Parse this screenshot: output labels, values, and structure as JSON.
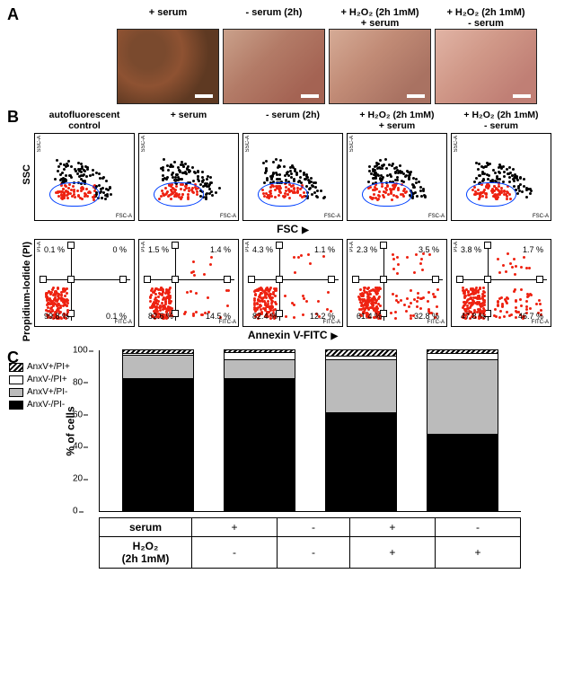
{
  "panelA": {
    "tag": "A",
    "conditions": [
      {
        "label": "+ serum"
      },
      {
        "label": "- serum (2h)"
      },
      {
        "label": "+ H₂O₂ (2h 1mM)\n+ serum"
      },
      {
        "label": "+ H₂O₂ (2h 1mM)\n- serum"
      }
    ]
  },
  "panelB": {
    "tag": "B",
    "y_upper": "SSC",
    "x_upper": "FSC",
    "y_lower": "Propidium-Iodide (PI)",
    "x_lower": "Annexin V-FITC",
    "mini_y": "SSC-A",
    "mini_x_fsc": "FSC-A",
    "mini_y_pi": "PI-A",
    "mini_x_fitc": "FITC-A",
    "gate_color": "#0040ff",
    "dot_color_red": "#ee2211",
    "dot_color_black": "#000000",
    "columns": [
      {
        "label": "autofluorescent\ncontrol",
        "quad": {
          "tl": "0.1 %",
          "tr": "0 %",
          "bl": "99.8 %",
          "br": "0.1 %"
        },
        "br_population": 0.1
      },
      {
        "label": "+ serum",
        "quad": {
          "tl": "1.5 %",
          "tr": "1.4 %",
          "bl": "82.6 %",
          "br": "14.5 %"
        },
        "br_population": 14.5
      },
      {
        "label": "- serum (2h)",
        "quad": {
          "tl": "4.3 %",
          "tr": "1.1 %",
          "bl": "82.4 %",
          "br": "12.2 %"
        },
        "br_population": 12.2
      },
      {
        "label": "+ H₂O₂ (2h 1mM)\n+ serum",
        "quad": {
          "tl": "2.3 %",
          "tr": "3.5 %",
          "bl": "61.4 %",
          "br": "32.8 %"
        },
        "br_population": 32.8
      },
      {
        "label": "+ H₂O₂ (2h 1mM)\n- serum",
        "quad": {
          "tl": "3.8 %",
          "tr": "1.7 %",
          "bl": "47.8 %",
          "br": "46.7 %"
        },
        "br_population": 46.7
      }
    ]
  },
  "panelC": {
    "tag": "C",
    "ylabel": "% of cells",
    "ylim": [
      0,
      100
    ],
    "ytick_step": 20,
    "legend": [
      {
        "key": "AnxV+/PI+",
        "class": "sw-hatch"
      },
      {
        "key": "AnxV-/PI+",
        "class": "sw-white"
      },
      {
        "key": "AnxV+/PI-",
        "class": "sw-grey"
      },
      {
        "key": "AnxV-/PI-",
        "class": "sw-black"
      }
    ],
    "colors": {
      "hatch": "#000000/#ffffff",
      "white": "#ffffff",
      "grey": "#bbbbbb",
      "black": "#000000"
    },
    "bars": [
      {
        "serum": "+",
        "h2o2": "-",
        "neg_neg": 82.6,
        "pos_neg": 14.5,
        "neg_pos": 1.5,
        "pos_pos": 1.4
      },
      {
        "serum": "-",
        "h2o2": "-",
        "neg_neg": 82.4,
        "pos_neg": 12.2,
        "neg_pos": 4.3,
        "pos_pos": 1.1
      },
      {
        "serum": "+",
        "h2o2": "+",
        "neg_neg": 61.4,
        "pos_neg": 32.8,
        "neg_pos": 2.3,
        "pos_pos": 3.5
      },
      {
        "serum": "-",
        "h2o2": "+",
        "neg_neg": 47.8,
        "pos_neg": 46.7,
        "neg_pos": 3.8,
        "pos_pos": 1.7
      }
    ],
    "cond_rows": [
      {
        "name": "serum"
      },
      {
        "name": "H₂O₂\n(2h 1mM)"
      }
    ]
  }
}
